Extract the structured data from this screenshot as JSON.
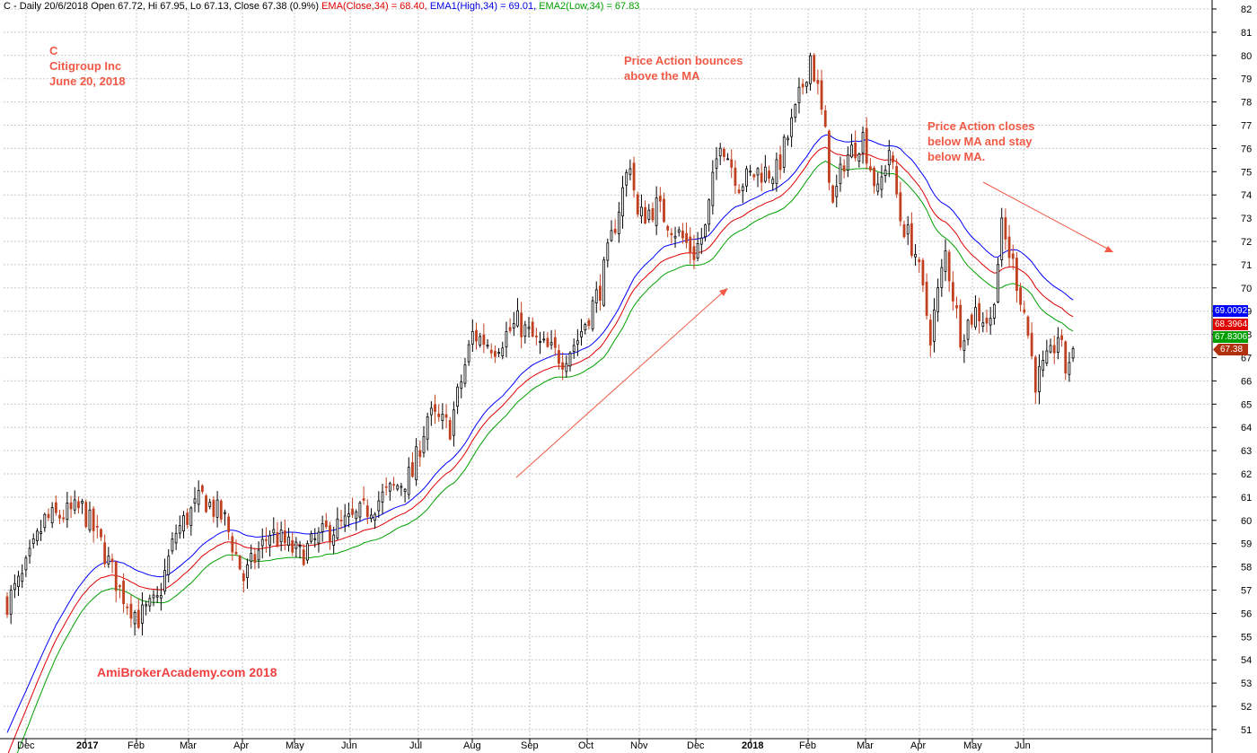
{
  "header": {
    "prefix": "C - Daily 20/6/2018 Open 67.72, Hi 67.95, Lo 67.13, Close 67.38 (0.9%)",
    "ema": "EMA(Close,34) = 68.40,",
    "ema1": "EMA1(High,34) = 69.01,",
    "ema2": "EMA2(Low,34) = 67.83"
  },
  "annotations": {
    "ticker": "C",
    "company": "Citigroup Inc",
    "date": "June 20, 2018",
    "bounce_line1": "Price Action bounces",
    "bounce_line2": "above the MA",
    "closes_line1": "Price Action closes",
    "closes_line2": "below MA and stay",
    "closes_line3": "below MA.",
    "watermark": "AmiBrokerAcademy.com  2018"
  },
  "value_tags": {
    "ema_high": "69.0092",
    "ema_close": "68.3964",
    "ema_low": "67.8306",
    "close": "67.38"
  },
  "colors": {
    "candle": "#000000",
    "candle_down": "#c04020",
    "ema_close": "#e00000",
    "ema_high": "#0000ff",
    "ema_low": "#00a000",
    "annotation": "#f05a46",
    "grid": "#c8c8c8"
  },
  "chart_data": {
    "type": "candlestick",
    "ylim": [
      51,
      82
    ],
    "y_ticks": [
      51,
      52,
      53,
      54,
      55,
      56,
      57,
      58,
      59,
      60,
      61,
      62,
      63,
      64,
      65,
      66,
      67,
      68,
      69,
      70,
      71,
      72,
      73,
      74,
      75,
      76,
      77,
      78,
      79,
      80,
      81,
      82
    ],
    "x_labels": [
      "Dec",
      "2017",
      "Feb",
      "Mar",
      "Apr",
      "May",
      "Jun",
      "Jul",
      "Aug",
      "Sep",
      "Oct",
      "Nov",
      "Dec",
      "2018",
      "Feb",
      "Mar",
      "Apr",
      "May",
      "Jun"
    ],
    "price_waypoints": [
      [
        0,
        56.5
      ],
      [
        4,
        57.5
      ],
      [
        10,
        60.0
      ],
      [
        20,
        60.5
      ],
      [
        25,
        59.0
      ],
      [
        30,
        57.0
      ],
      [
        35,
        55.8
      ],
      [
        40,
        56.5
      ],
      [
        45,
        59.5
      ],
      [
        52,
        61.0
      ],
      [
        58,
        60.0
      ],
      [
        63,
        57.5
      ],
      [
        70,
        59.5
      ],
      [
        78,
        58.5
      ],
      [
        85,
        59.5
      ],
      [
        92,
        60.0
      ],
      [
        100,
        61.0
      ],
      [
        108,
        62.0
      ],
      [
        112,
        64.5
      ],
      [
        118,
        64.0
      ],
      [
        124,
        68.0
      ],
      [
        130,
        67.5
      ],
      [
        136,
        68.5
      ],
      [
        142,
        67.5
      ],
      [
        148,
        67.0
      ],
      [
        152,
        67.8
      ],
      [
        158,
        70.0
      ],
      [
        163,
        73.5
      ],
      [
        166,
        75.5
      ],
      [
        168,
        73.0
      ],
      [
        173,
        73.5
      ],
      [
        178,
        72.5
      ],
      [
        183,
        71.5
      ],
      [
        186,
        72.5
      ],
      [
        190,
        76.5
      ],
      [
        195,
        74.5
      ],
      [
        200,
        75.0
      ],
      [
        205,
        75.0
      ],
      [
        210,
        77.5
      ],
      [
        214,
        80.0
      ],
      [
        216,
        78.5
      ],
      [
        218,
        76.5
      ],
      [
        220,
        73.5
      ],
      [
        223,
        75.5
      ],
      [
        228,
        76.5
      ],
      [
        232,
        74.0
      ],
      [
        235,
        76.0
      ],
      [
        238,
        73.0
      ],
      [
        242,
        71.5
      ],
      [
        246,
        68.0
      ],
      [
        250,
        71.5
      ],
      [
        254,
        68.0
      ],
      [
        258,
        69.0
      ],
      [
        262,
        68.5
      ],
      [
        265,
        72.5
      ],
      [
        268,
        71.0
      ],
      [
        271,
        69.0
      ],
      [
        274,
        66.0
      ],
      [
        278,
        67.0
      ],
      [
        280,
        68.0
      ],
      [
        282,
        66.5
      ],
      [
        284,
        67.4
      ]
    ],
    "ema_close_last": 68.4,
    "ema_high_last": 69.01,
    "ema_low_last": 67.83,
    "last_close": 67.38
  }
}
